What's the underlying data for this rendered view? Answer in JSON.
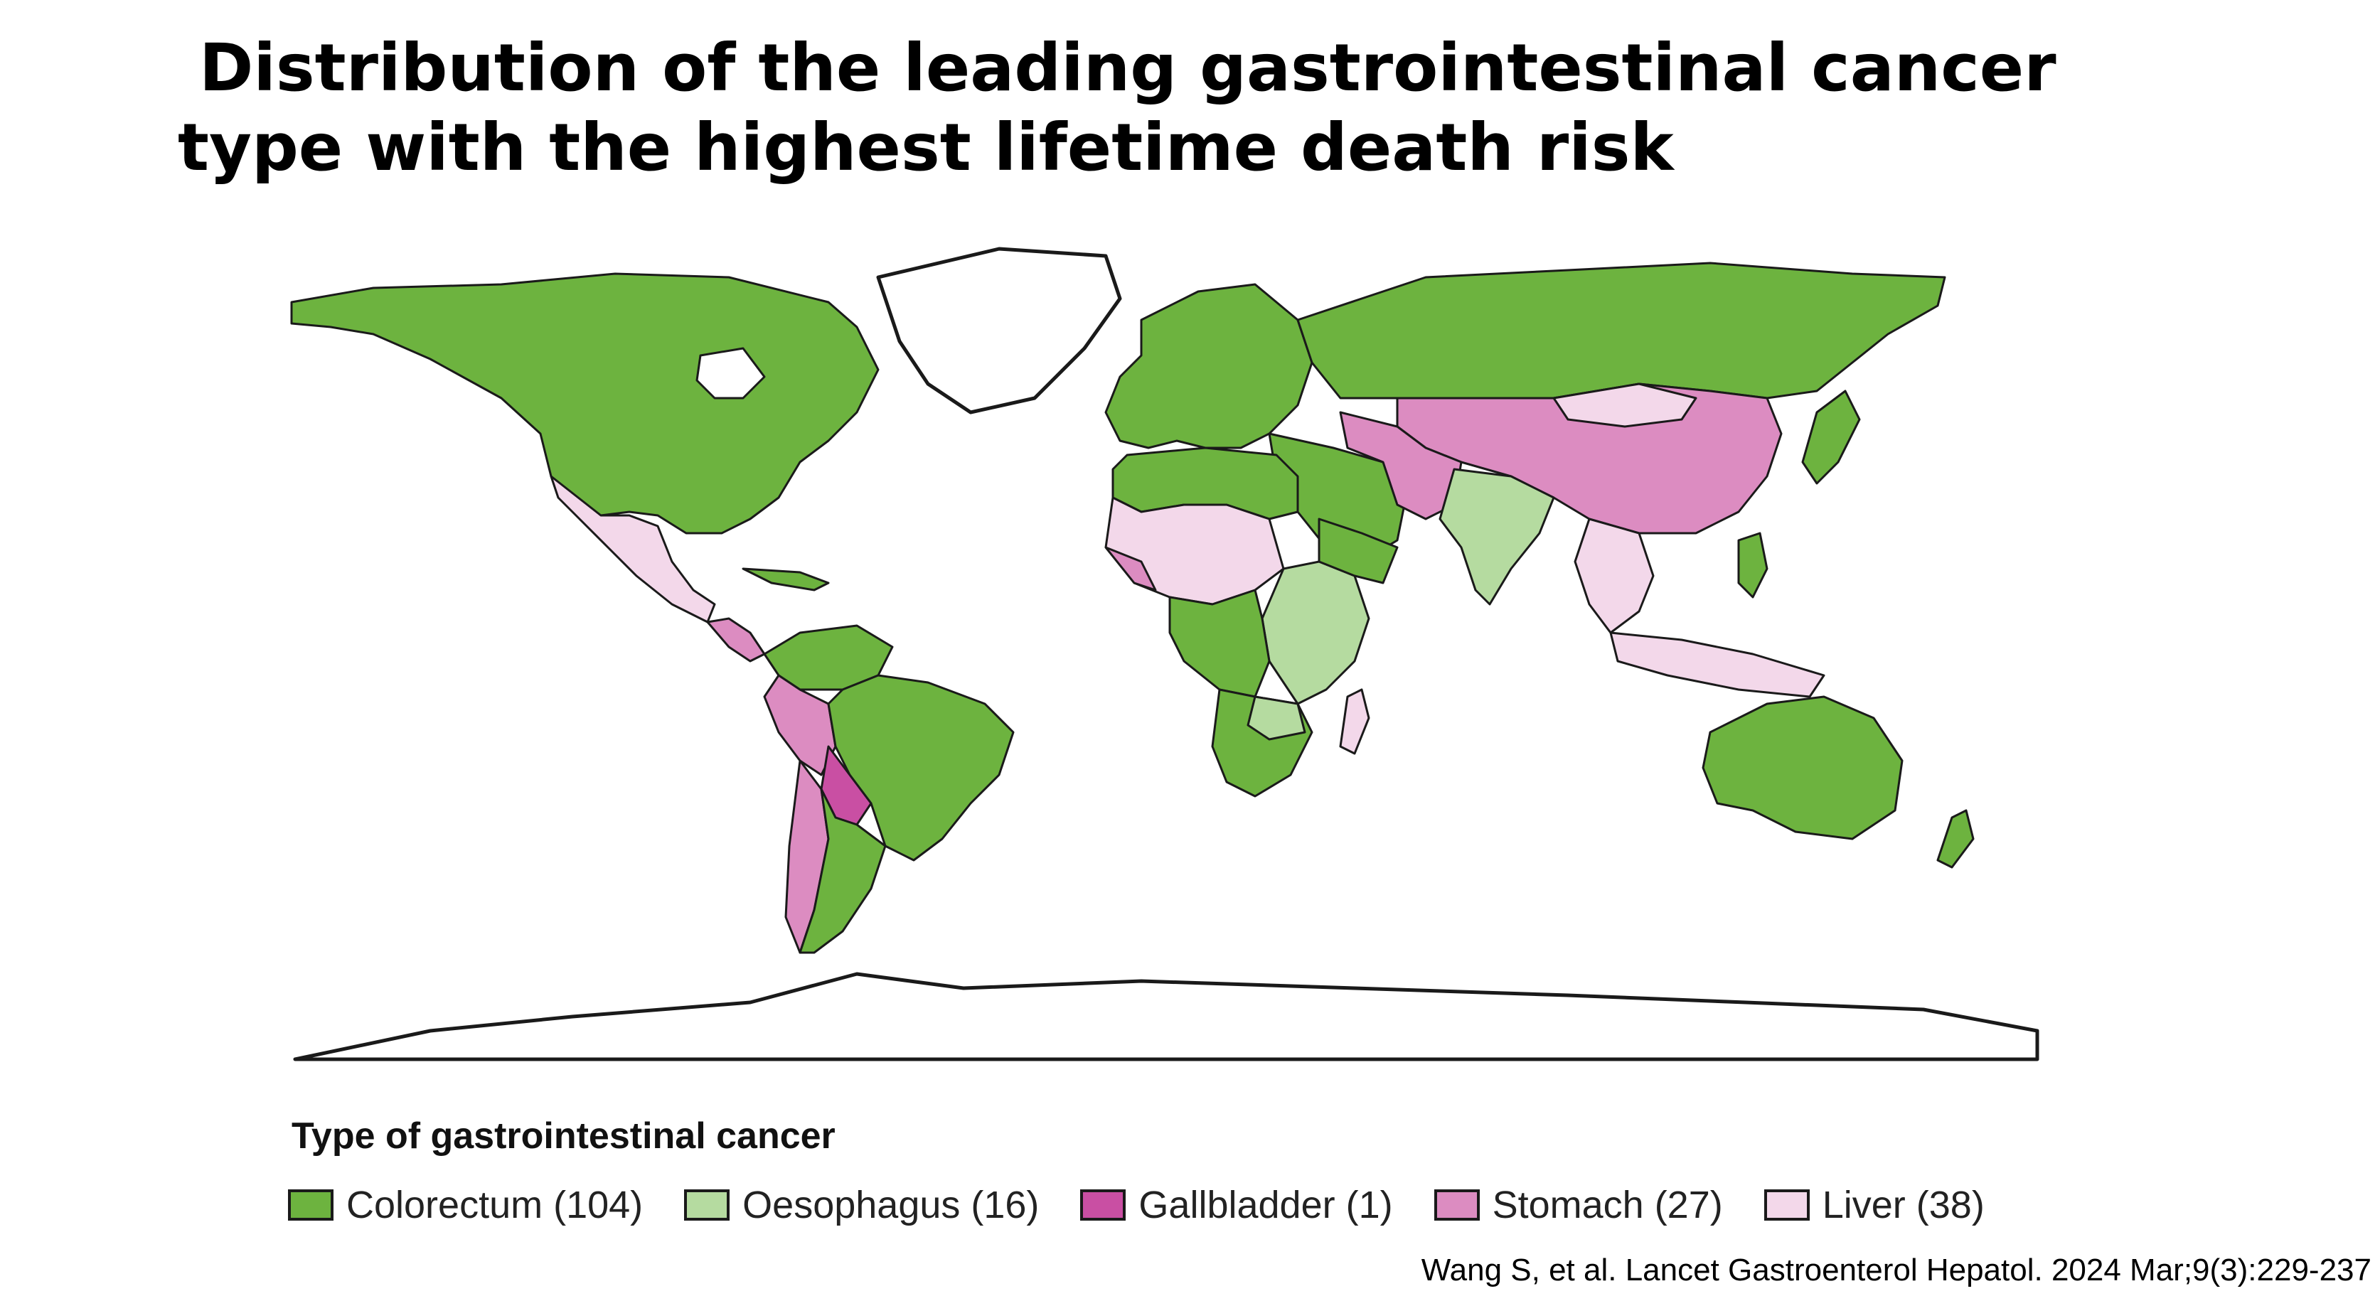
{
  "title": {
    "line1": "Distribution of the leading gastrointestinal cancer",
    "line2": "type with the highest lifetime death risk"
  },
  "legend": {
    "title": "Type of gastrointestinal cancer",
    "items": [
      {
        "label": "Colorectum (104)",
        "color": "#6db33f",
        "icon": "colorectum-swatch"
      },
      {
        "label": "Oesophagus (16)",
        "color": "#b5dba0",
        "icon": "oesophagus-swatch"
      },
      {
        "label": "Gallbladder (1)",
        "color": "#c94fa3",
        "icon": "gallbladder-swatch"
      },
      {
        "label": "Stomach (27)",
        "color": "#dc8cc1",
        "icon": "stomach-swatch"
      },
      {
        "label": "Liver (38)",
        "color": "#f3d8ea",
        "icon": "liver-swatch"
      }
    ]
  },
  "citation": "Wang S, et al. Lancet Gastroenterol Hepatol. 2024 Mar;9(3):229-237"
}
